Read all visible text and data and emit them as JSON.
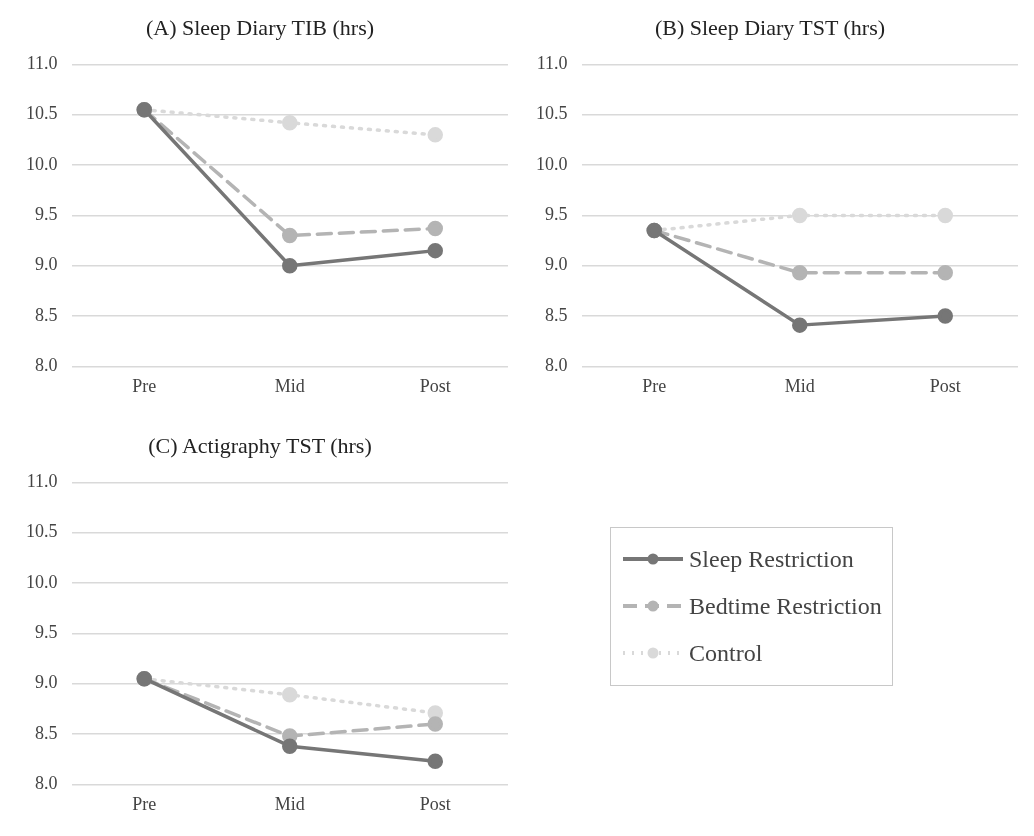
{
  "chart_data": [
    {
      "type": "line",
      "title": "(A) Sleep Diary TIB (hrs)",
      "categories": [
        "Pre",
        "Mid",
        "Post"
      ],
      "ylim": [
        8,
        11
      ],
      "yticks": [
        {
          "value": 8,
          "label": "8.0"
        },
        {
          "value": 8.5,
          "label": "8.5"
        },
        {
          "value": 9,
          "label": "9.0"
        },
        {
          "value": 9.5,
          "label": "9.5"
        },
        {
          "value": 10,
          "label": "10.0"
        },
        {
          "value": 10.5,
          "label": "10.5"
        },
        {
          "value": 11,
          "label": "11.0"
        }
      ],
      "grid": "y",
      "marker": "circle",
      "series": [
        {
          "color": "#767676",
          "line_style": "solid",
          "values": [
            10.55,
            9.0,
            9.15
          ]
        },
        {
          "color": "#b4b4b4",
          "line_style": "dashed",
          "values": [
            10.55,
            9.3,
            9.37
          ]
        },
        {
          "color": "#d9d9d9",
          "line_style": "dotted",
          "values": [
            10.55,
            10.42,
            10.3
          ]
        }
      ]
    },
    {
      "type": "line",
      "title": "(B) Sleep Diary TST (hrs)",
      "categories": [
        "Pre",
        "Mid",
        "Post"
      ],
      "ylim": [
        8,
        11
      ],
      "yticks": [
        {
          "value": 8,
          "label": "8.0"
        },
        {
          "value": 8.5,
          "label": "8.5"
        },
        {
          "value": 9,
          "label": "9.0"
        },
        {
          "value": 9.5,
          "label": "9.5"
        },
        {
          "value": 10,
          "label": "10.0"
        },
        {
          "value": 10.5,
          "label": "10.5"
        },
        {
          "value": 11,
          "label": "11.0"
        }
      ],
      "grid": "y",
      "marker": "circle",
      "series": [
        {
          "color": "#767676",
          "line_style": "solid",
          "values": [
            9.35,
            8.41,
            8.5
          ]
        },
        {
          "color": "#b4b4b4",
          "line_style": "dashed",
          "values": [
            9.35,
            8.93,
            8.93
          ]
        },
        {
          "color": "#d9d9d9",
          "line_style": "dotted",
          "values": [
            9.35,
            9.5,
            9.5
          ]
        }
      ]
    },
    {
      "type": "line",
      "title": "(C) Actigraphy TST (hrs)",
      "categories": [
        "Pre",
        "Mid",
        "Post"
      ],
      "ylim": [
        8,
        11
      ],
      "yticks": [
        {
          "value": 8,
          "label": "8.0"
        },
        {
          "value": 8.5,
          "label": "8.5"
        },
        {
          "value": 9,
          "label": "9.0"
        },
        {
          "value": 9.5,
          "label": "9.5"
        },
        {
          "value": 10,
          "label": "10.0"
        },
        {
          "value": 10.5,
          "label": "10.5"
        },
        {
          "value": 11,
          "label": "11.0"
        }
      ],
      "grid": "y",
      "marker": "circle",
      "legend": "right",
      "series": [
        {
          "name": "Sleep Restriction",
          "color": "#767676",
          "line_style": "solid",
          "values": [
            9.05,
            8.38,
            8.23
          ]
        },
        {
          "name": "Bedtime Restriction",
          "color": "#b4b4b4",
          "line_style": "dashed",
          "values": [
            9.05,
            8.48,
            8.6
          ]
        },
        {
          "name": "Control",
          "color": "#d9d9d9",
          "line_style": "dotted",
          "values": [
            9.05,
            8.89,
            8.71
          ]
        }
      ]
    }
  ]
}
